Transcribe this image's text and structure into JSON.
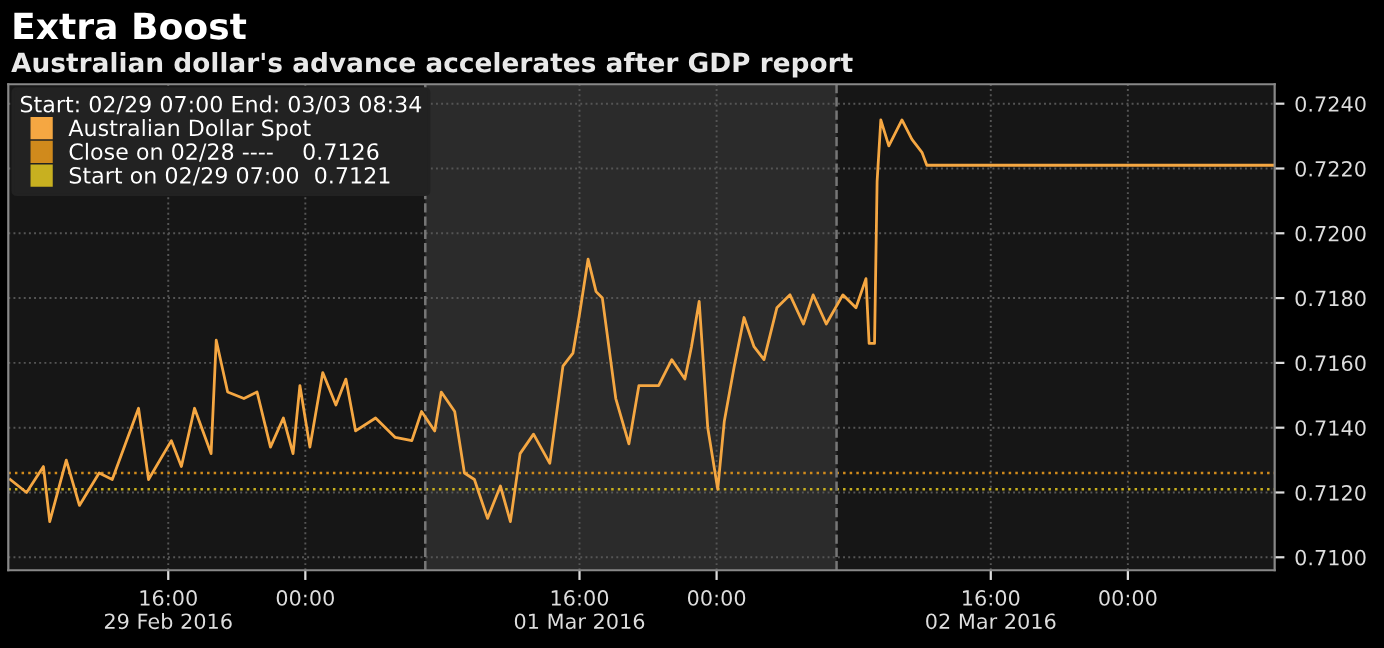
{
  "chart_data": {
    "type": "line",
    "title": "Extra Boost",
    "subtitle": "Australian dollar's advance accelerates after GDP report",
    "legend_title": "Start: 02/29 07:00 End: 03/03 08:34",
    "legend": "top left",
    "grid": true,
    "marker": "none",
    "line_style": "solid",
    "series": [
      {
        "name": "Australian Dollar Spot",
        "color": "#f5a742",
        "x": [
          "2016-02-29T06:47",
          "2016-02-29T07:44",
          "2016-02-29T08:43",
          "2016-02-29T09:05",
          "2016-02-29T10:03",
          "2016-02-29T10:49",
          "2016-02-29T11:58",
          "2016-02-29T12:44",
          "2016-02-29T14:16",
          "2016-02-29T14:51",
          "2016-02-29T16:11",
          "2016-02-29T16:46",
          "2016-02-29T17:32",
          "2016-02-29T18:30",
          "2016-02-29T18:48",
          "2016-02-29T19:28",
          "2016-02-29T20:25",
          "2016-02-29T21:11",
          "2016-02-29T21:58",
          "2016-02-29T22:43",
          "2016-02-29T23:17",
          "2016-02-29T23:41",
          "2016-03-01T00:16",
          "2016-03-01T01:01",
          "2016-03-01T01:47",
          "2016-03-01T02:22",
          "2016-03-01T02:56",
          "2016-03-01T04:06",
          "2016-03-01T05:15",
          "2016-03-01T06:13",
          "2016-03-01T06:47",
          "2016-03-01T07:33",
          "2016-03-01T07:56",
          "2016-03-01T08:43",
          "2016-03-01T09:17",
          "2016-03-01T09:52",
          "2016-03-01T10:38",
          "2016-03-01T11:23",
          "2016-03-01T11:58",
          "2016-03-01T12:32",
          "2016-03-01T13:19",
          "2016-03-01T14:16",
          "2016-03-01T15:02",
          "2016-03-01T15:37",
          "2016-03-01T16:00",
          "2016-03-01T16:30",
          "2016-03-01T16:58",
          "2016-03-01T17:20",
          "2016-03-01T18:07",
          "2016-03-01T18:53",
          "2016-03-01T19:28",
          "2016-03-01T20:37",
          "2016-03-01T21:23",
          "2016-03-01T22:09",
          "2016-03-01T22:32",
          "2016-03-01T22:59",
          "2016-03-01T23:29",
          "2016-03-02T00:04",
          "2016-03-02T00:27",
          "2016-03-02T01:02",
          "2016-03-02T01:36",
          "2016-03-02T02:11",
          "2016-03-02T02:46",
          "2016-03-02T03:31",
          "2016-03-02T04:17",
          "2016-03-02T05:04",
          "2016-03-02T05:38",
          "2016-03-02T06:24",
          "2016-03-02T07:22",
          "2016-03-02T08:08",
          "2016-03-02T08:43",
          "2016-03-02T08:54",
          "2016-03-02T09:13",
          "2016-03-02T09:22",
          "2016-03-02T09:35",
          "2016-03-02T10:03",
          "2016-03-02T10:49",
          "2016-03-02T11:24",
          "2016-03-02T11:59",
          "2016-03-02T12:16",
          "2016-03-03T08:34"
        ],
        "values": [
          0.7124,
          0.712,
          0.7128,
          0.7111,
          0.713,
          0.7116,
          0.7126,
          0.7124,
          0.7146,
          0.7124,
          0.7136,
          0.7128,
          0.7146,
          0.7132,
          0.7167,
          0.7151,
          0.7149,
          0.7151,
          0.7134,
          0.7143,
          0.7132,
          0.7153,
          0.7134,
          0.7157,
          0.7147,
          0.7155,
          0.7139,
          0.7143,
          0.7137,
          0.7136,
          0.7145,
          0.7139,
          0.7151,
          0.7145,
          0.7126,
          0.7124,
          0.7112,
          0.7122,
          0.7111,
          0.7132,
          0.7138,
          0.7129,
          0.7159,
          0.7163,
          0.7175,
          0.7192,
          0.7182,
          0.718,
          0.7149,
          0.7135,
          0.7153,
          0.7153,
          0.7161,
          0.7155,
          0.7165,
          0.7179,
          0.714,
          0.7121,
          0.7142,
          0.7159,
          0.7174,
          0.7165,
          0.7161,
          0.7177,
          0.7181,
          0.7172,
          0.7181,
          0.7172,
          0.7181,
          0.7177,
          0.7186,
          0.7166,
          0.7166,
          0.7216,
          0.7235,
          0.7227,
          0.7235,
          0.7229,
          0.7225,
          0.7221,
          0.7221
        ]
      }
    ],
    "ref_lines": [
      {
        "axis": "y",
        "value": 0.7126,
        "label": "Close on 02/28 ----    0.7126",
        "color": "#d08a1c",
        "line_style": "dotted"
      },
      {
        "axis": "y",
        "value": 0.7121,
        "label": "Start on 02/29 07:00  0.7121",
        "color": "#c8b020",
        "line_style": "dotted"
      },
      {
        "axis": "x",
        "value": "2016-03-01T07:00",
        "color": "#777777",
        "line_style": "dashed"
      },
      {
        "axis": "x",
        "value": "2016-03-02T07:00",
        "color": "#777777",
        "line_style": "dashed"
      }
    ],
    "bands": [
      {
        "axis": "x",
        "from": "2016-03-01T07:00",
        "to": "2016-03-02T07:00",
        "color": "#2b2b2b"
      }
    ],
    "xlim": [
      "2016-02-29T06:40",
      "2016-03-03T08:34"
    ],
    "xticks": [
      {
        "value": "2016-02-29T16:00",
        "label": "16:00\n29 Feb 2016"
      },
      {
        "value": "2016-03-01T00:00",
        "label": "00:00"
      },
      {
        "value": "2016-03-01T16:00",
        "label": "16:00\n01 Mar 2016"
      },
      {
        "value": "2016-03-02T00:00",
        "label": "00:00"
      },
      {
        "value": "2016-03-02T16:00",
        "label": "16:00\n02 Mar 2016"
      },
      {
        "value": "2016-03-03T00:00",
        "label": "00:00"
      }
    ],
    "ylim": [
      0.7096,
      0.7246
    ],
    "yticks": [
      {
        "value": 0.71,
        "label": "0.7100"
      },
      {
        "value": 0.712,
        "label": "0.7120"
      },
      {
        "value": 0.714,
        "label": "0.7140"
      },
      {
        "value": 0.716,
        "label": "0.7160"
      },
      {
        "value": 0.718,
        "label": "0.7180"
      },
      {
        "value": 0.72,
        "label": "0.7200"
      },
      {
        "value": 0.722,
        "label": "0.7220"
      },
      {
        "value": 0.724,
        "label": "0.7240"
      }
    ]
  }
}
